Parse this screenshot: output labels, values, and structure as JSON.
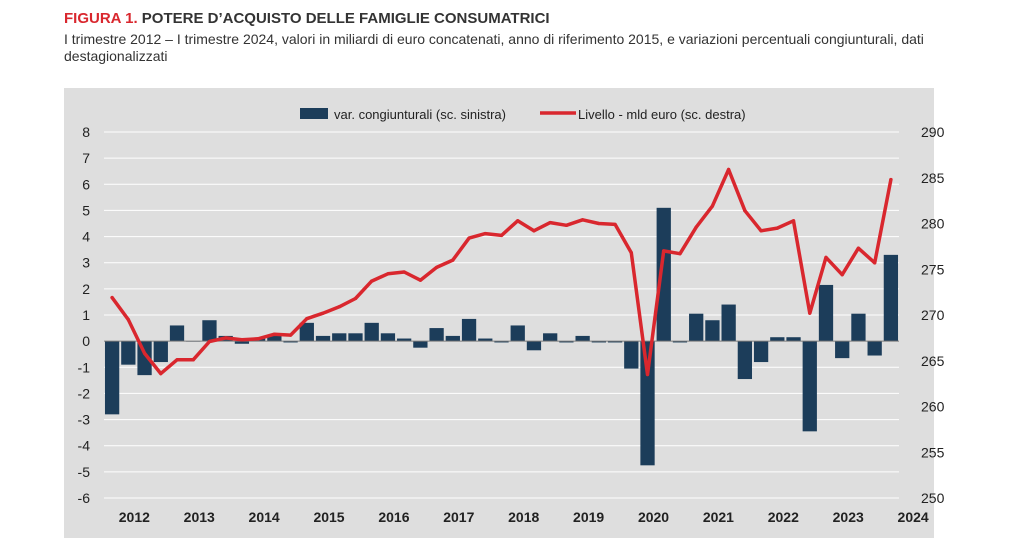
{
  "header": {
    "figure_number": "FIGURA 1.",
    "figure_title": "POTERE D’ACQUISTO DELLE FAMIGLIE CONSUMATRICI",
    "subtitle": "I trimestre 2012 – I trimestre 2024, valori in miliardi di euro concatenati, anno di riferimento 2015, e variazioni percentuali congiunturali, dati destagionalizzati"
  },
  "colors": {
    "plot_background": "#dedede",
    "bar": "#1c3d5a",
    "line": "#d9272e",
    "grid": "#ffffff",
    "text": "#222222"
  },
  "chart_data": {
    "type": "bar+line",
    "legend_position": "top",
    "grid": true,
    "x_tick_labels": [
      "2012",
      "2013",
      "2014",
      "2015",
      "2016",
      "2017",
      "2018",
      "2019",
      "2020",
      "2021",
      "2022",
      "2023",
      "2024"
    ],
    "periods": [
      "2012 Q1",
      "2012 Q2",
      "2012 Q3",
      "2012 Q4",
      "2013 Q1",
      "2013 Q2",
      "2013 Q3",
      "2013 Q4",
      "2014 Q1",
      "2014 Q2",
      "2014 Q3",
      "2014 Q4",
      "2015 Q1",
      "2015 Q2",
      "2015 Q3",
      "2015 Q4",
      "2016 Q1",
      "2016 Q2",
      "2016 Q3",
      "2016 Q4",
      "2017 Q1",
      "2017 Q2",
      "2017 Q3",
      "2017 Q4",
      "2018 Q1",
      "2018 Q2",
      "2018 Q3",
      "2018 Q4",
      "2019 Q1",
      "2019 Q2",
      "2019 Q3",
      "2019 Q4",
      "2020 Q1",
      "2020 Q2",
      "2020 Q3",
      "2020 Q4",
      "2021 Q1",
      "2021 Q2",
      "2021 Q3",
      "2021 Q4",
      "2022 Q1",
      "2022 Q2",
      "2022 Q3",
      "2022 Q4",
      "2023 Q1",
      "2023 Q2",
      "2023 Q3",
      "2023 Q4",
      "2024 Q1"
    ],
    "y_left": {
      "min": -6,
      "max": 8,
      "ticks": [
        8,
        7,
        6,
        5,
        4,
        3,
        2,
        1,
        0,
        -1,
        -2,
        -3,
        -4,
        -5,
        -6
      ]
    },
    "y_right": {
      "min": 250,
      "max": 290,
      "ticks": [
        290,
        285,
        280,
        275,
        270,
        265,
        260,
        255,
        250
      ]
    },
    "series": [
      {
        "name": "var. congiunturali (sc. sinistra)",
        "type": "bar",
        "axis": "left",
        "values": [
          -2.8,
          -0.9,
          -1.3,
          -0.8,
          0.6,
          0.0,
          0.8,
          0.2,
          -0.1,
          0.1,
          0.2,
          -0.05,
          0.7,
          0.2,
          0.3,
          0.3,
          0.7,
          0.3,
          0.1,
          -0.25,
          0.5,
          0.2,
          0.85,
          0.1,
          -0.05,
          0.6,
          -0.35,
          0.3,
          -0.05,
          0.2,
          -0.05,
          -0.05,
          -1.05,
          -4.75,
          5.1,
          -0.05,
          1.05,
          0.8,
          1.4,
          -1.45,
          -0.8,
          0.15,
          0.15,
          -3.45,
          2.15,
          -0.65,
          1.05,
          -0.55,
          3.3
        ]
      },
      {
        "name": "Livello - mld euro (sc. destra)",
        "type": "line",
        "axis": "right",
        "values": [
          271.9,
          269.5,
          265.8,
          263.6,
          265.1,
          265.1,
          267.1,
          267.5,
          267.3,
          267.4,
          267.9,
          267.8,
          269.6,
          270.2,
          270.9,
          271.8,
          273.7,
          274.5,
          274.7,
          273.8,
          275.2,
          276.0,
          278.4,
          278.9,
          278.7,
          280.3,
          279.2,
          280.1,
          279.8,
          280.4,
          280.0,
          279.9,
          276.8,
          263.5,
          277.0,
          276.7,
          279.6,
          281.9,
          285.9,
          281.4,
          279.2,
          279.5,
          280.3,
          270.2,
          276.3,
          274.4,
          277.3,
          275.7,
          284.8
        ]
      }
    ]
  }
}
